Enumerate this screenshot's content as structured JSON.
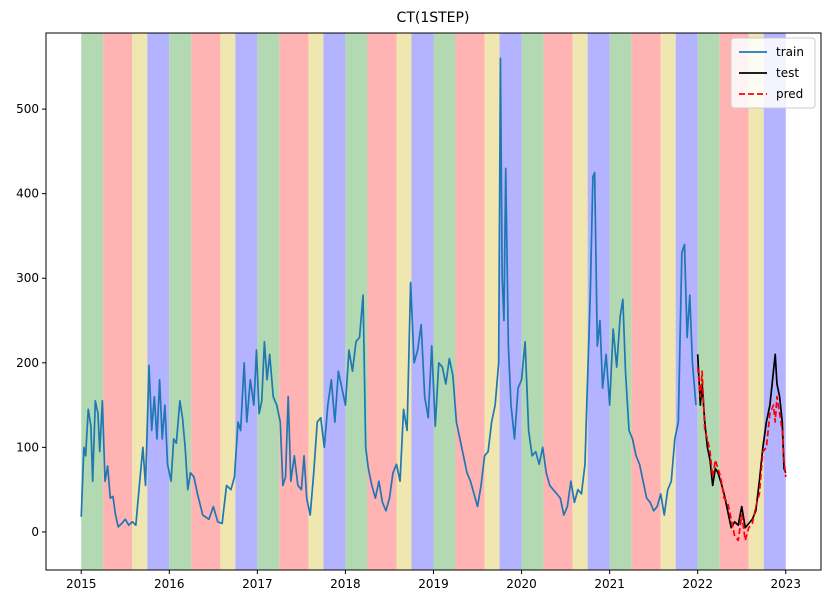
{
  "chart_data": {
    "type": "line",
    "title": "CT(1STEP)",
    "xlabel": "",
    "ylabel": "",
    "xlim": [
      2014.6,
      2023.4
    ],
    "ylim": [
      -45,
      590
    ],
    "x_ticks": [
      2015,
      2016,
      2017,
      2018,
      2019,
      2020,
      2021,
      2022,
      2023
    ],
    "x_tick_labels": [
      "2015",
      "2016",
      "2017",
      "2018",
      "2019",
      "2020",
      "2021",
      "2022",
      "2023"
    ],
    "y_ticks": [
      0,
      100,
      200,
      300,
      400,
      500
    ],
    "y_tick_labels": [
      "0",
      "100",
      "200",
      "300",
      "400",
      "500"
    ],
    "grid": false,
    "legend_position": "top-right",
    "season_colors": {
      "winter": "#b3b3ff",
      "spring": "#b3d9b3",
      "summer": "#ffb3b3",
      "autumn": "#f0e6b0"
    },
    "season_bands": [
      {
        "season": "spring",
        "start": 2015.0,
        "end": 2015.25
      },
      {
        "season": "summer",
        "start": 2015.25,
        "end": 2015.58
      },
      {
        "season": "autumn",
        "start": 2015.58,
        "end": 2015.75
      },
      {
        "season": "winter",
        "start": 2015.75,
        "end": 2016.0
      },
      {
        "season": "spring",
        "start": 2016.0,
        "end": 2016.25
      },
      {
        "season": "summer",
        "start": 2016.25,
        "end": 2016.58
      },
      {
        "season": "autumn",
        "start": 2016.58,
        "end": 2016.75
      },
      {
        "season": "winter",
        "start": 2016.75,
        "end": 2017.0
      },
      {
        "season": "spring",
        "start": 2017.0,
        "end": 2017.25
      },
      {
        "season": "summer",
        "start": 2017.25,
        "end": 2017.58
      },
      {
        "season": "autumn",
        "start": 2017.58,
        "end": 2017.75
      },
      {
        "season": "winter",
        "start": 2017.75,
        "end": 2018.0
      },
      {
        "season": "spring",
        "start": 2018.0,
        "end": 2018.25
      },
      {
        "season": "summer",
        "start": 2018.25,
        "end": 2018.58
      },
      {
        "season": "autumn",
        "start": 2018.58,
        "end": 2018.75
      },
      {
        "season": "winter",
        "start": 2018.75,
        "end": 2019.0
      },
      {
        "season": "spring",
        "start": 2019.0,
        "end": 2019.25
      },
      {
        "season": "summer",
        "start": 2019.25,
        "end": 2019.58
      },
      {
        "season": "autumn",
        "start": 2019.58,
        "end": 2019.75
      },
      {
        "season": "winter",
        "start": 2019.75,
        "end": 2020.0
      },
      {
        "season": "spring",
        "start": 2020.0,
        "end": 2020.25
      },
      {
        "season": "summer",
        "start": 2020.25,
        "end": 2020.58
      },
      {
        "season": "autumn",
        "start": 2020.58,
        "end": 2020.75
      },
      {
        "season": "winter",
        "start": 2020.75,
        "end": 2021.0
      },
      {
        "season": "spring",
        "start": 2021.0,
        "end": 2021.25
      },
      {
        "season": "summer",
        "start": 2021.25,
        "end": 2021.58
      },
      {
        "season": "autumn",
        "start": 2021.58,
        "end": 2021.75
      },
      {
        "season": "winter",
        "start": 2021.75,
        "end": 2022.0
      },
      {
        "season": "spring",
        "start": 2022.0,
        "end": 2022.25
      },
      {
        "season": "summer",
        "start": 2022.25,
        "end": 2022.58
      },
      {
        "season": "autumn",
        "start": 2022.58,
        "end": 2022.75
      },
      {
        "season": "winter",
        "start": 2022.75,
        "end": 2023.0
      }
    ],
    "series": [
      {
        "name": "train",
        "color": "#1f77b4",
        "style": "solid",
        "points": [
          [
            2015.0,
            18
          ],
          [
            2015.03,
            100
          ],
          [
            2015.05,
            90
          ],
          [
            2015.08,
            145
          ],
          [
            2015.11,
            125
          ],
          [
            2015.13,
            60
          ],
          [
            2015.16,
            155
          ],
          [
            2015.19,
            140
          ],
          [
            2015.21,
            95
          ],
          [
            2015.24,
            155
          ],
          [
            2015.27,
            60
          ],
          [
            2015.3,
            78
          ],
          [
            2015.33,
            40
          ],
          [
            2015.36,
            42
          ],
          [
            2015.39,
            20
          ],
          [
            2015.42,
            6
          ],
          [
            2015.46,
            10
          ],
          [
            2015.5,
            15
          ],
          [
            2015.54,
            8
          ],
          [
            2015.58,
            12
          ],
          [
            2015.62,
            8
          ],
          [
            2015.66,
            55
          ],
          [
            2015.7,
            100
          ],
          [
            2015.73,
            55
          ],
          [
            2015.77,
            197
          ],
          [
            2015.8,
            120
          ],
          [
            2015.83,
            160
          ],
          [
            2015.86,
            110
          ],
          [
            2015.89,
            180
          ],
          [
            2015.92,
            110
          ],
          [
            2015.95,
            150
          ],
          [
            2015.98,
            80
          ],
          [
            2016.02,
            60
          ],
          [
            2016.05,
            110
          ],
          [
            2016.08,
            105
          ],
          [
            2016.12,
            155
          ],
          [
            2016.15,
            135
          ],
          [
            2016.18,
            100
          ],
          [
            2016.21,
            50
          ],
          [
            2016.24,
            70
          ],
          [
            2016.28,
            65
          ],
          [
            2016.32,
            45
          ],
          [
            2016.38,
            20
          ],
          [
            2016.45,
            15
          ],
          [
            2016.5,
            30
          ],
          [
            2016.55,
            12
          ],
          [
            2016.6,
            10
          ],
          [
            2016.65,
            55
          ],
          [
            2016.7,
            50
          ],
          [
            2016.74,
            65
          ],
          [
            2016.78,
            130
          ],
          [
            2016.81,
            120
          ],
          [
            2016.85,
            200
          ],
          [
            2016.88,
            130
          ],
          [
            2016.92,
            180
          ],
          [
            2016.96,
            150
          ],
          [
            2016.99,
            215
          ],
          [
            2017.02,
            140
          ],
          [
            2017.05,
            155
          ],
          [
            2017.08,
            225
          ],
          [
            2017.11,
            180
          ],
          [
            2017.14,
            210
          ],
          [
            2017.18,
            160
          ],
          [
            2017.22,
            150
          ],
          [
            2017.26,
            130
          ],
          [
            2017.29,
            55
          ],
          [
            2017.32,
            65
          ],
          [
            2017.35,
            160
          ],
          [
            2017.38,
            60
          ],
          [
            2017.42,
            90
          ],
          [
            2017.46,
            55
          ],
          [
            2017.5,
            50
          ],
          [
            2017.53,
            90
          ],
          [
            2017.56,
            40
          ],
          [
            2017.6,
            20
          ],
          [
            2017.64,
            70
          ],
          [
            2017.68,
            130
          ],
          [
            2017.72,
            135
          ],
          [
            2017.76,
            100
          ],
          [
            2017.8,
            150
          ],
          [
            2017.84,
            180
          ],
          [
            2017.88,
            130
          ],
          [
            2017.92,
            190
          ],
          [
            2017.96,
            170
          ],
          [
            2018.0,
            150
          ],
          [
            2018.04,
            215
          ],
          [
            2018.08,
            190
          ],
          [
            2018.12,
            225
          ],
          [
            2018.16,
            230
          ],
          [
            2018.2,
            280
          ],
          [
            2018.23,
            100
          ],
          [
            2018.26,
            75
          ],
          [
            2018.3,
            55
          ],
          [
            2018.34,
            40
          ],
          [
            2018.38,
            60
          ],
          [
            2018.42,
            35
          ],
          [
            2018.46,
            25
          ],
          [
            2018.5,
            40
          ],
          [
            2018.54,
            70
          ],
          [
            2018.58,
            80
          ],
          [
            2018.62,
            60
          ],
          [
            2018.66,
            145
          ],
          [
            2018.7,
            120
          ],
          [
            2018.74,
            295
          ],
          [
            2018.78,
            200
          ],
          [
            2018.82,
            215
          ],
          [
            2018.86,
            245
          ],
          [
            2018.9,
            160
          ],
          [
            2018.94,
            135
          ],
          [
            2018.98,
            220
          ],
          [
            2019.02,
            125
          ],
          [
            2019.06,
            200
          ],
          [
            2019.1,
            195
          ],
          [
            2019.14,
            175
          ],
          [
            2019.18,
            205
          ],
          [
            2019.22,
            185
          ],
          [
            2019.26,
            130
          ],
          [
            2019.3,
            110
          ],
          [
            2019.34,
            90
          ],
          [
            2019.38,
            70
          ],
          [
            2019.42,
            60
          ],
          [
            2019.46,
            45
          ],
          [
            2019.5,
            30
          ],
          [
            2019.54,
            55
          ],
          [
            2019.58,
            90
          ],
          [
            2019.62,
            95
          ],
          [
            2019.66,
            130
          ],
          [
            2019.7,
            150
          ],
          [
            2019.74,
            200
          ],
          [
            2019.76,
            560
          ],
          [
            2019.78,
            300
          ],
          [
            2019.8,
            250
          ],
          [
            2019.82,
            430
          ],
          [
            2019.85,
            220
          ],
          [
            2019.88,
            150
          ],
          [
            2019.92,
            110
          ],
          [
            2019.96,
            170
          ],
          [
            2020.0,
            180
          ],
          [
            2020.04,
            225
          ],
          [
            2020.08,
            120
          ],
          [
            2020.12,
            90
          ],
          [
            2020.16,
            95
          ],
          [
            2020.2,
            80
          ],
          [
            2020.24,
            100
          ],
          [
            2020.28,
            70
          ],
          [
            2020.32,
            55
          ],
          [
            2020.36,
            50
          ],
          [
            2020.4,
            45
          ],
          [
            2020.44,
            40
          ],
          [
            2020.48,
            20
          ],
          [
            2020.52,
            30
          ],
          [
            2020.56,
            60
          ],
          [
            2020.6,
            35
          ],
          [
            2020.64,
            50
          ],
          [
            2020.68,
            45
          ],
          [
            2020.72,
            80
          ],
          [
            2020.74,
            150
          ],
          [
            2020.78,
            280
          ],
          [
            2020.81,
            420
          ],
          [
            2020.83,
            425
          ],
          [
            2020.86,
            220
          ],
          [
            2020.89,
            250
          ],
          [
            2020.92,
            170
          ],
          [
            2020.96,
            210
          ],
          [
            2021.0,
            150
          ],
          [
            2021.04,
            240
          ],
          [
            2021.08,
            195
          ],
          [
            2021.12,
            255
          ],
          [
            2021.15,
            275
          ],
          [
            2021.18,
            190
          ],
          [
            2021.22,
            120
          ],
          [
            2021.26,
            110
          ],
          [
            2021.3,
            90
          ],
          [
            2021.34,
            80
          ],
          [
            2021.38,
            60
          ],
          [
            2021.42,
            40
          ],
          [
            2021.46,
            35
          ],
          [
            2021.5,
            25
          ],
          [
            2021.54,
            30
          ],
          [
            2021.58,
            45
          ],
          [
            2021.62,
            20
          ],
          [
            2021.66,
            50
          ],
          [
            2021.7,
            60
          ],
          [
            2021.74,
            110
          ],
          [
            2021.78,
            130
          ],
          [
            2021.82,
            330
          ],
          [
            2021.85,
            340
          ],
          [
            2021.88,
            230
          ],
          [
            2021.91,
            280
          ],
          [
            2021.94,
            200
          ],
          [
            2021.98,
            150
          ]
        ]
      },
      {
        "name": "test",
        "color": "#000000",
        "style": "solid",
        "points": [
          [
            2022.0,
            210
          ],
          [
            2022.03,
            150
          ],
          [
            2022.05,
            175
          ],
          [
            2022.08,
            130
          ],
          [
            2022.11,
            100
          ],
          [
            2022.14,
            85
          ],
          [
            2022.17,
            55
          ],
          [
            2022.2,
            75
          ],
          [
            2022.23,
            70
          ],
          [
            2022.26,
            60
          ],
          [
            2022.3,
            45
          ],
          [
            2022.34,
            25
          ],
          [
            2022.38,
            5
          ],
          [
            2022.42,
            12
          ],
          [
            2022.46,
            8
          ],
          [
            2022.5,
            30
          ],
          [
            2022.54,
            5
          ],
          [
            2022.58,
            10
          ],
          [
            2022.62,
            15
          ],
          [
            2022.66,
            25
          ],
          [
            2022.7,
            60
          ],
          [
            2022.74,
            100
          ],
          [
            2022.78,
            130
          ],
          [
            2022.82,
            150
          ],
          [
            2022.86,
            190
          ],
          [
            2022.88,
            210
          ],
          [
            2022.9,
            175
          ],
          [
            2022.93,
            160
          ],
          [
            2022.96,
            130
          ],
          [
            2022.98,
            75
          ],
          [
            2023.0,
            70
          ]
        ]
      },
      {
        "name": "pred",
        "color": "#ff0000",
        "style": "dashed",
        "points": [
          [
            2022.0,
            195
          ],
          [
            2022.03,
            160
          ],
          [
            2022.05,
            190
          ],
          [
            2022.08,
            120
          ],
          [
            2022.11,
            110
          ],
          [
            2022.14,
            95
          ],
          [
            2022.17,
            65
          ],
          [
            2022.2,
            85
          ],
          [
            2022.23,
            75
          ],
          [
            2022.26,
            65
          ],
          [
            2022.3,
            40
          ],
          [
            2022.34,
            35
          ],
          [
            2022.38,
            15
          ],
          [
            2022.42,
            -5
          ],
          [
            2022.46,
            -10
          ],
          [
            2022.5,
            20
          ],
          [
            2022.54,
            -10
          ],
          [
            2022.58,
            5
          ],
          [
            2022.62,
            10
          ],
          [
            2022.66,
            30
          ],
          [
            2022.7,
            45
          ],
          [
            2022.74,
            95
          ],
          [
            2022.78,
            100
          ],
          [
            2022.82,
            140
          ],
          [
            2022.86,
            150
          ],
          [
            2022.88,
            130
          ],
          [
            2022.9,
            160
          ],
          [
            2022.93,
            140
          ],
          [
            2022.96,
            120
          ],
          [
            2022.98,
            85
          ],
          [
            2023.0,
            65
          ]
        ]
      }
    ]
  }
}
